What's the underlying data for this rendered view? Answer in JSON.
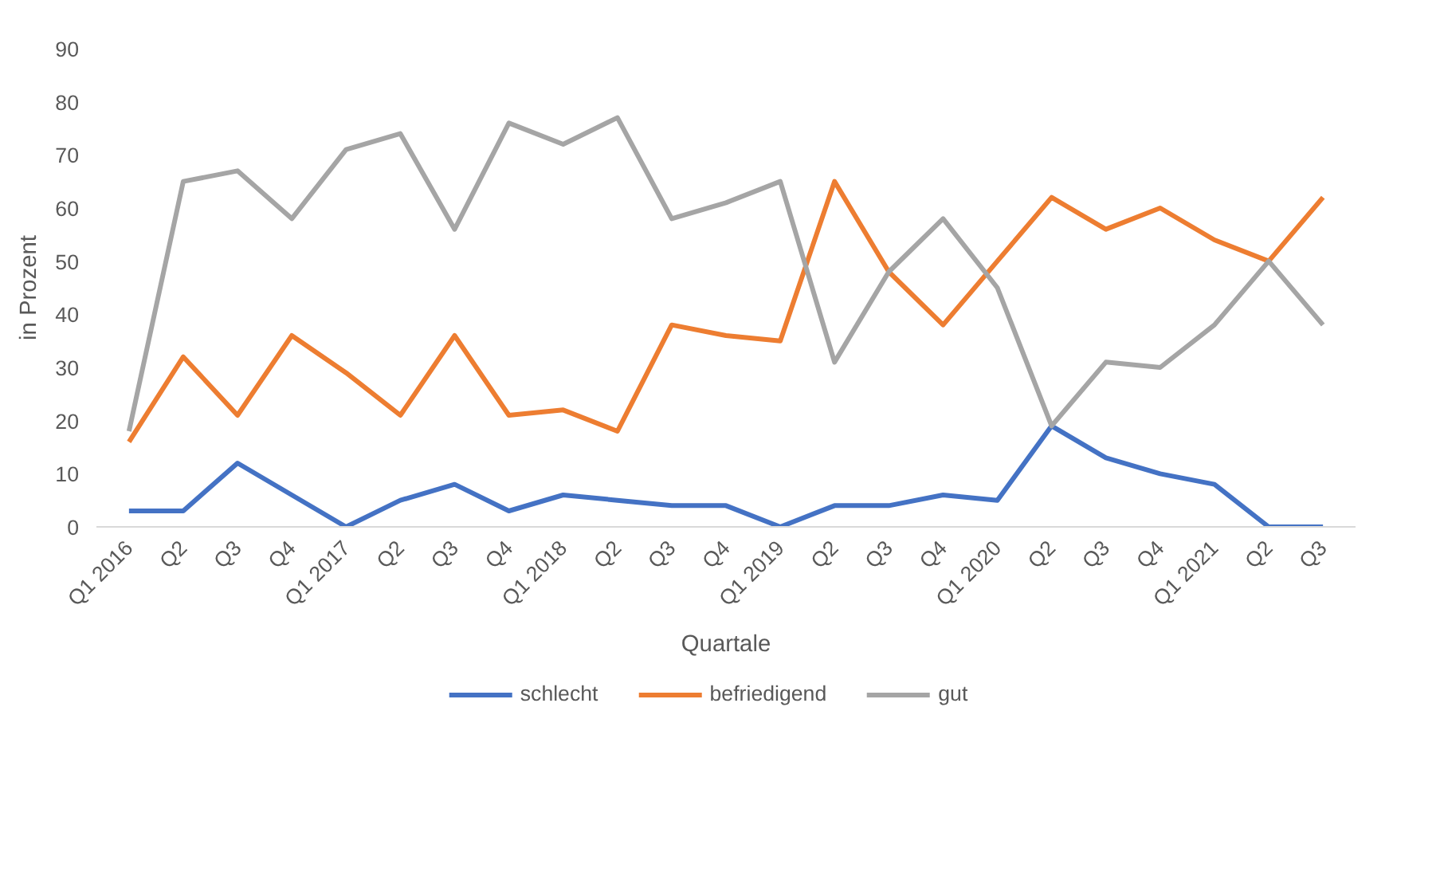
{
  "chart_data": {
    "type": "line",
    "xlabel": "Quartale",
    "ylabel": "in Prozent",
    "categories": [
      "Q1 2016",
      "Q2",
      "Q3",
      "Q4",
      "Q1 2017",
      "Q2",
      "Q3",
      "Q4",
      "Q1 2018",
      "Q2",
      "Q3",
      "Q4",
      "Q1 2019",
      "Q2",
      "Q3",
      "Q4",
      "Q1 2020",
      "Q2",
      "Q3",
      "Q4",
      "Q1 2021",
      "Q2",
      "Q3"
    ],
    "series": [
      {
        "name": "schlecht",
        "color": "#4472c4",
        "values": [
          3,
          3,
          12,
          6,
          0,
          5,
          8,
          3,
          6,
          5,
          4,
          4,
          0,
          4,
          4,
          6,
          5,
          19,
          13,
          10,
          8,
          0,
          0
        ]
      },
      {
        "name": "befriedigend",
        "color": "#ed7d31",
        "values": [
          16,
          32,
          21,
          36,
          29,
          21,
          36,
          21,
          22,
          18,
          38,
          36,
          35,
          65,
          48,
          38,
          50,
          62,
          56,
          60,
          54,
          50,
          62
        ]
      },
      {
        "name": "gut",
        "color": "#a5a5a5",
        "values": [
          18,
          65,
          67,
          58,
          71,
          74,
          56,
          76,
          72,
          77,
          58,
          61,
          65,
          31,
          48,
          58,
          45,
          19,
          31,
          30,
          38,
          50,
          38
        ]
      }
    ],
    "ylim": [
      0,
      90
    ],
    "yticks": [
      0,
      10,
      20,
      30,
      40,
      50,
      60,
      70,
      80,
      90
    ],
    "grid": false,
    "legend": "bottom",
    "marker": "none",
    "line_style": "solid"
  }
}
